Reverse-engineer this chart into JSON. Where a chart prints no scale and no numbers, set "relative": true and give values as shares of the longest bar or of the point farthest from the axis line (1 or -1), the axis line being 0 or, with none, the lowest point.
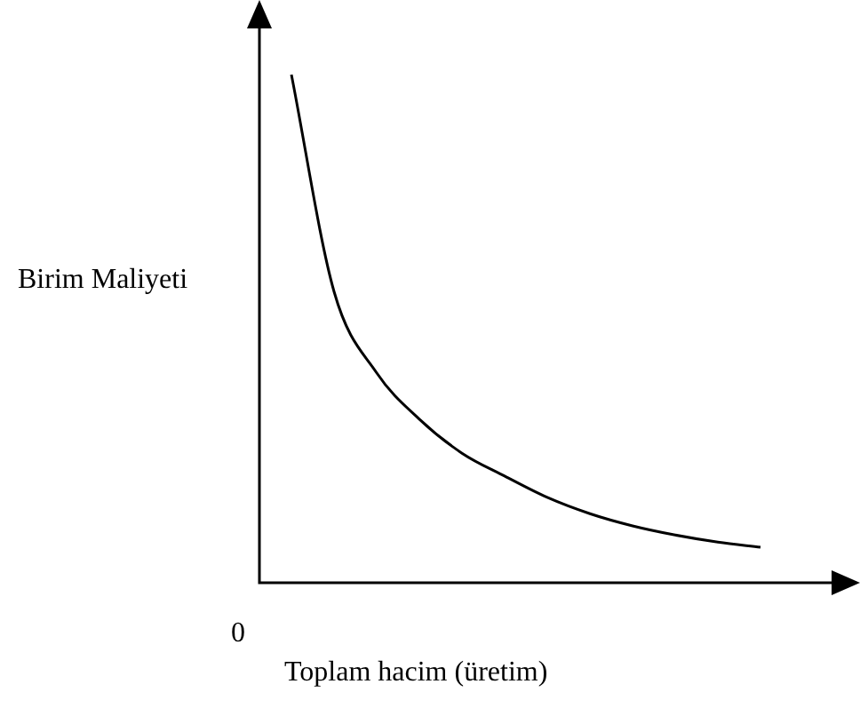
{
  "chart_data": {
    "type": "line",
    "relative": true,
    "xlabel": "Toplam hacim (üretim)",
    "ylabel": "Birim Maliyeti",
    "annotations": [
      "0"
    ],
    "legend": false,
    "categories": [
      null,
      null,
      null,
      null,
      null,
      null,
      null,
      null,
      null,
      null,
      null,
      null
    ],
    "series": [
      {
        "color": "#000000",
        "values": [
          1,
          0.573,
          0.413,
          0.322,
          0.255,
          0.21,
          0.168,
          0.136,
          0.112,
          0.094,
          0.08,
          0.07
        ]
      }
    ]
  }
}
